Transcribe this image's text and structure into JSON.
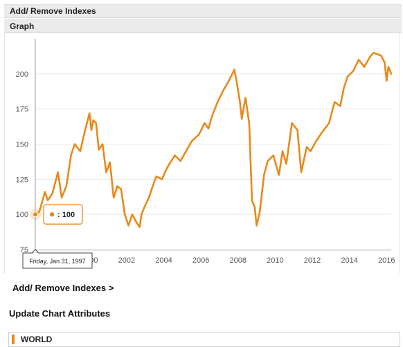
{
  "header": {
    "add_remove_title": "Add/ Remove Indexes",
    "graph_title": "Graph"
  },
  "links": {
    "add_remove_link": "Add/ Remove Indexes >"
  },
  "sections": {
    "update_chart_title": "Update Chart Attributes"
  },
  "series_list": [
    {
      "name": "WORLD",
      "color": "#e8891b"
    }
  ],
  "tooltip": {
    "date_text": "Friday, Jan 31, 1997",
    "value_text": ": 100"
  },
  "colors": {
    "line": "#e8891b",
    "grid": "#e6e6e6",
    "axis_text": "#555555"
  },
  "chart_data": {
    "type": "line",
    "title": "",
    "xlabel": "",
    "ylabel": "",
    "xlim": [
      1997.08,
      2016.25
    ],
    "ylim": [
      75,
      225
    ],
    "y_ticks": [
      75,
      100,
      125,
      150,
      175,
      200
    ],
    "x_ticks": [
      2000,
      2002,
      2004,
      2006,
      2008,
      2010,
      2012,
      2014,
      2016
    ],
    "grid": true,
    "crosshair_x": 1997.08,
    "series": [
      {
        "name": "WORLD",
        "x": [
          1997.08,
          1997.3,
          1997.6,
          1997.75,
          1998.0,
          1998.3,
          1998.5,
          1998.75,
          1998.9,
          1999.0,
          1999.2,
          1999.5,
          1999.8,
          2000.0,
          2000.1,
          2000.2,
          2000.35,
          2000.5,
          2000.7,
          2000.9,
          2001.1,
          2001.3,
          2001.5,
          2001.7,
          2001.9,
          2002.1,
          2002.3,
          2002.5,
          2002.7,
          2002.8,
          2002.95,
          2003.2,
          2003.4,
          2003.6,
          2003.9,
          2004.1,
          2004.3,
          2004.6,
          2004.9,
          2005.2,
          2005.5,
          2005.9,
          2006.2,
          2006.4,
          2006.6,
          2006.9,
          2007.2,
          2007.5,
          2007.8,
          2007.92,
          2008.1,
          2008.2,
          2008.4,
          2008.6,
          2008.75,
          2008.9,
          2009.0,
          2009.17,
          2009.4,
          2009.6,
          2009.9,
          2010.2,
          2010.4,
          2010.6,
          2010.9,
          2011.2,
          2011.4,
          2011.7,
          2011.9,
          2012.2,
          2012.5,
          2012.9,
          2013.2,
          2013.5,
          2013.7,
          2013.9,
          2014.2,
          2014.5,
          2014.8,
          2015.1,
          2015.3,
          2015.5,
          2015.7,
          2015.9,
          2016.0,
          2016.1,
          2016.25
        ],
        "values": [
          100,
          102,
          116,
          110,
          115,
          130,
          112,
          120,
          133,
          142,
          150,
          145,
          162,
          172,
          160,
          167,
          165,
          146,
          150,
          130,
          137,
          112,
          120,
          118,
          100,
          92,
          100,
          95,
          91,
          100,
          105,
          112,
          120,
          127,
          125,
          131,
          136,
          142,
          138,
          145,
          152,
          157,
          165,
          161,
          170,
          180,
          188,
          195,
          203,
          195,
          180,
          168,
          183,
          165,
          110,
          105,
          92,
          102,
          128,
          138,
          142,
          128,
          145,
          136,
          165,
          160,
          130,
          148,
          145,
          152,
          158,
          165,
          180,
          177,
          190,
          198,
          202,
          210,
          205,
          212,
          215,
          214,
          213,
          208,
          195,
          205,
          200
        ]
      }
    ]
  }
}
